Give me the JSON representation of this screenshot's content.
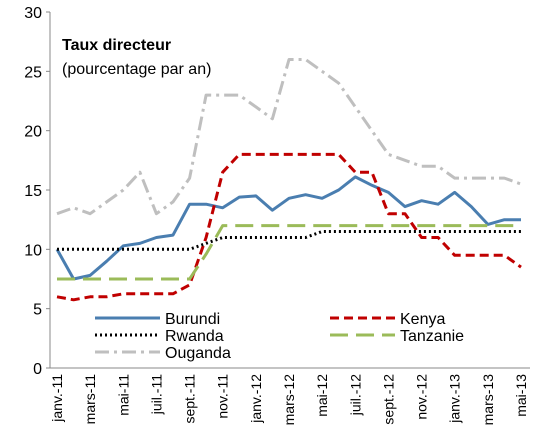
{
  "chart_data": {
    "type": "line",
    "annotations": [
      "Taux directeur",
      "(pourcentage par an)"
    ],
    "categories": [
      "janv.-11",
      null,
      "mars-11",
      null,
      "mai-11",
      null,
      "juil.-11",
      null,
      "sept.-11",
      null,
      "nov.-11",
      null,
      "janv.-12",
      null,
      "mars-12",
      null,
      "mai-12",
      null,
      "juil.-12",
      null,
      "sept.-12",
      null,
      "nov.-12",
      null,
      "janv.-13",
      null,
      "mars-13",
      null,
      "mai-13"
    ],
    "ylim": [
      0,
      30
    ],
    "yticks": [
      0,
      5,
      10,
      15,
      20,
      25,
      30
    ],
    "grid": false,
    "series": [
      {
        "name": "Burundi",
        "color": "#4a7eb0",
        "dash": "solid",
        "values": [
          10,
          7.5,
          7.8,
          9,
          10.3,
          10.5,
          11,
          11.2,
          13.8,
          13.8,
          13.5,
          14.4,
          14.5,
          13.3,
          14.3,
          14.6,
          14.3,
          15,
          16.1,
          15.4,
          14.8,
          13.6,
          14.1,
          13.8,
          14.8,
          13.6,
          12.1,
          12.5,
          12.5
        ]
      },
      {
        "name": "Kenya",
        "color": "#c00000",
        "dash": "dash",
        "values": [
          6,
          5.75,
          6,
          6,
          6.25,
          6.25,
          6.25,
          6.25,
          7,
          11,
          16.5,
          18,
          18,
          18,
          18,
          18,
          18,
          18,
          16.5,
          16.5,
          13,
          13,
          11,
          11,
          9.5,
          9.5,
          9.5,
          9.5,
          8.5
        ]
      },
      {
        "name": "Rwanda",
        "color": "#000000",
        "dash": "dot",
        "values": [
          10,
          10,
          10,
          10,
          10,
          10,
          10,
          10,
          10,
          10.5,
          11,
          11,
          11,
          11,
          11,
          11,
          11.5,
          11.5,
          11.5,
          11.5,
          11.5,
          11.5,
          11.5,
          11.5,
          11.5,
          11.5,
          11.5,
          11.5,
          11.5
        ]
      },
      {
        "name": "Tanzanie",
        "color": "#9bbb59",
        "dash": "longdash",
        "values": [
          7.5,
          7.5,
          7.5,
          7.5,
          7.5,
          7.5,
          7.5,
          7.5,
          7.5,
          9.6,
          12,
          12,
          12,
          12,
          12,
          12,
          12,
          12,
          12,
          12,
          12,
          12,
          12,
          12,
          12,
          12,
          12,
          12,
          12
        ]
      },
      {
        "name": "Ouganda",
        "color": "#bfbfbf",
        "dash": "dashdot",
        "values": [
          13,
          13.5,
          13,
          14,
          15,
          16.5,
          13,
          14,
          16,
          23,
          23,
          23,
          22,
          21,
          26,
          26,
          25,
          24,
          22,
          20,
          18,
          17.5,
          17,
          17,
          16,
          16,
          16,
          16,
          15.5
        ]
      }
    ]
  }
}
